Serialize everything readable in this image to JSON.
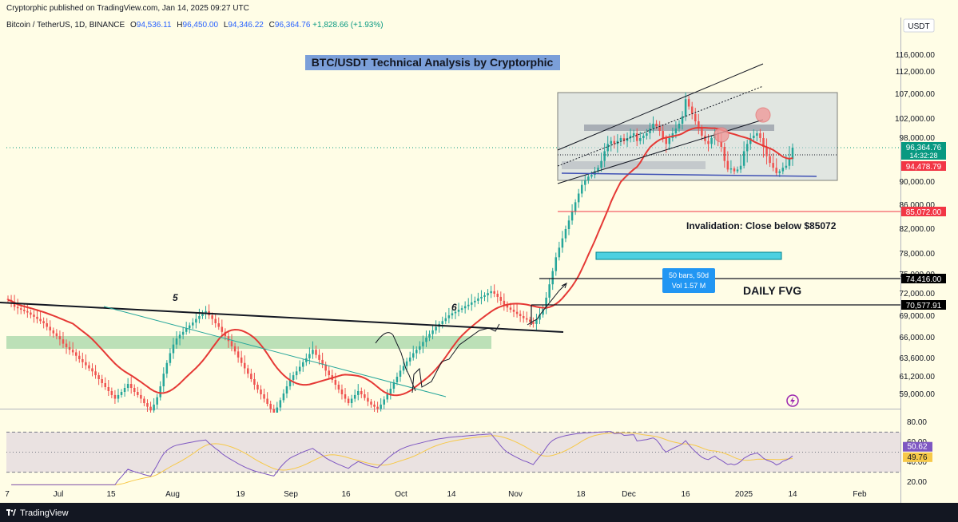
{
  "header": {
    "published": "Cryptorphic published on TradingView.com, Jan 14, 2025 09:27 UTC",
    "symbol": "Bitcoin / TetherUS, 1D, BINANCE",
    "open_label": "O",
    "open": "94,536.11",
    "high_label": "H",
    "high": "96,450.00",
    "low_label": "L",
    "low": "94,346.22",
    "close_label": "C",
    "close": "96,364.76",
    "change": "+1,828.66 (+1.93%)"
  },
  "currency": "USDT",
  "chart_data": {
    "type": "candlestick",
    "title": "BTC/USDT Technical Analysis by Cryptorphic",
    "annotations": {
      "invalidation": "Invalidation: Close below $85072",
      "fvg": "DAILY FVG",
      "wave_5": "5",
      "wave_6": "6",
      "measure_bars": "50 bars, 50d",
      "measure_vol": "Vol 1.57 M"
    },
    "ylim": [
      56500,
      121000
    ],
    "price_ticks": [
      "116,000.00",
      "112,000.00",
      "107,000.00",
      "102,000.00",
      "98,000.00",
      "90,000.00",
      "86,000.00",
      "82,000.00",
      "78,000.00",
      "75,000.00",
      "72,000.00",
      "69,000.00",
      "66,000.00",
      "63,600.00",
      "61,200.00",
      "59,000.00"
    ],
    "price_tick_values": [
      116000,
      112000,
      107000,
      102000,
      98000,
      90000,
      86000,
      82000,
      78000,
      75000,
      72000,
      69000,
      66000,
      63600,
      61200,
      59000
    ],
    "price_labels": [
      {
        "text": "96,364.76",
        "sub": "14:32:28",
        "value": 96364.76,
        "color": "#089981"
      },
      {
        "text": "94,478.79",
        "value": 94478.79,
        "color": "#f23645"
      },
      {
        "text": "85,072.00",
        "value": 85072,
        "color": "#f23645"
      },
      {
        "text": "74,416.00",
        "value": 74416,
        "color": "#000000"
      },
      {
        "text": "70,577.91",
        "value": 70577.91,
        "color": "#000000"
      }
    ],
    "x_ticks": [
      "7",
      "Jul",
      "15",
      "Aug",
      "19",
      "Sep",
      "16",
      "Oct",
      "14",
      "Nov",
      "18",
      "Dec",
      "16",
      "2025",
      "14",
      "Feb"
    ],
    "rsi": {
      "ticks": [
        "80.00",
        "60.00",
        "40.00",
        "20.00"
      ],
      "tick_values": [
        80,
        60,
        40,
        20
      ],
      "value_label": "50.62",
      "ma_label": "49.76",
      "value": 50.62,
      "ma": 49.76,
      "band": [
        30,
        70
      ],
      "ylim": [
        17,
        87
      ]
    },
    "closes": [
      71200,
      71000,
      70300,
      70100,
      69900,
      69700,
      69500,
      69200,
      68900,
      68600,
      68300,
      68000,
      67500,
      67000,
      66600,
      66200,
      65800,
      65300,
      64900,
      64600,
      64300,
      63900,
      63500,
      63100,
      62700,
      62300,
      61900,
      61400,
      60900,
      60400,
      59900,
      59400,
      58900,
      58400,
      58900,
      59300,
      59800,
      60300,
      59800,
      59300,
      58900,
      58400,
      57800,
      57300,
      56800,
      57600,
      58600,
      60000,
      61600,
      63000,
      64200,
      65200,
      65900,
      66400,
      66800,
      67300,
      67700,
      68100,
      68600,
      69000,
      69300,
      69700,
      69100,
      68600,
      68000,
      67500,
      66800,
      66200,
      65600,
      65000,
      64400,
      63700,
      63000,
      62300,
      61600,
      60900,
      60200,
      59600,
      59000,
      58400,
      57700,
      57000,
      56400,
      57200,
      58200,
      59100,
      60000,
      60800,
      61400,
      61900,
      62500,
      63100,
      63600,
      64100,
      64600,
      64000,
      63400,
      62800,
      62000,
      61400,
      60800,
      60200,
      59600,
      59000,
      58400,
      57800,
      58400,
      58900,
      59400,
      59000,
      58500,
      58000,
      57600,
      57300,
      57000,
      57600,
      58300,
      59000,
      59700,
      60500,
      61200,
      62000,
      62600,
      63200,
      63700,
      64200,
      64600,
      65000,
      65500,
      66000,
      66500,
      67000,
      67500,
      67900,
      68300,
      68700,
      69100,
      69400,
      69600,
      69900,
      70100,
      70400,
      70600,
      70900,
      71100,
      71400,
      71600,
      71800,
      72100,
      72400,
      72000,
      71600,
      71100,
      70600,
      70200,
      69900,
      69600,
      69300,
      69000,
      68700,
      68500,
      68200,
      67900,
      68500,
      69200,
      70000,
      71500,
      73500,
      75500,
      77500,
      79000,
      80500,
      82000,
      83500,
      85000,
      86500,
      88000,
      89500,
      90500,
      91500,
      92000,
      93000,
      94000,
      95000,
      96000,
      97000,
      97500,
      97000,
      97500,
      98000,
      97500,
      98000,
      98500,
      99000,
      97500,
      98000,
      98500,
      99000,
      100000,
      101000,
      100500,
      99500,
      98000,
      97000,
      98000,
      99000,
      100000,
      101000,
      102500,
      106000,
      104500,
      103000,
      101500,
      100000,
      98500,
      97500,
      97000,
      98000,
      99000,
      97500,
      96500,
      95000,
      93500,
      93800,
      93000,
      93500,
      94500,
      96000,
      97000,
      98000,
      98500,
      99000,
      98000,
      96500,
      95500,
      94800,
      94000,
      92500,
      93000,
      94000,
      94500,
      95200,
      96364
    ]
  }
}
